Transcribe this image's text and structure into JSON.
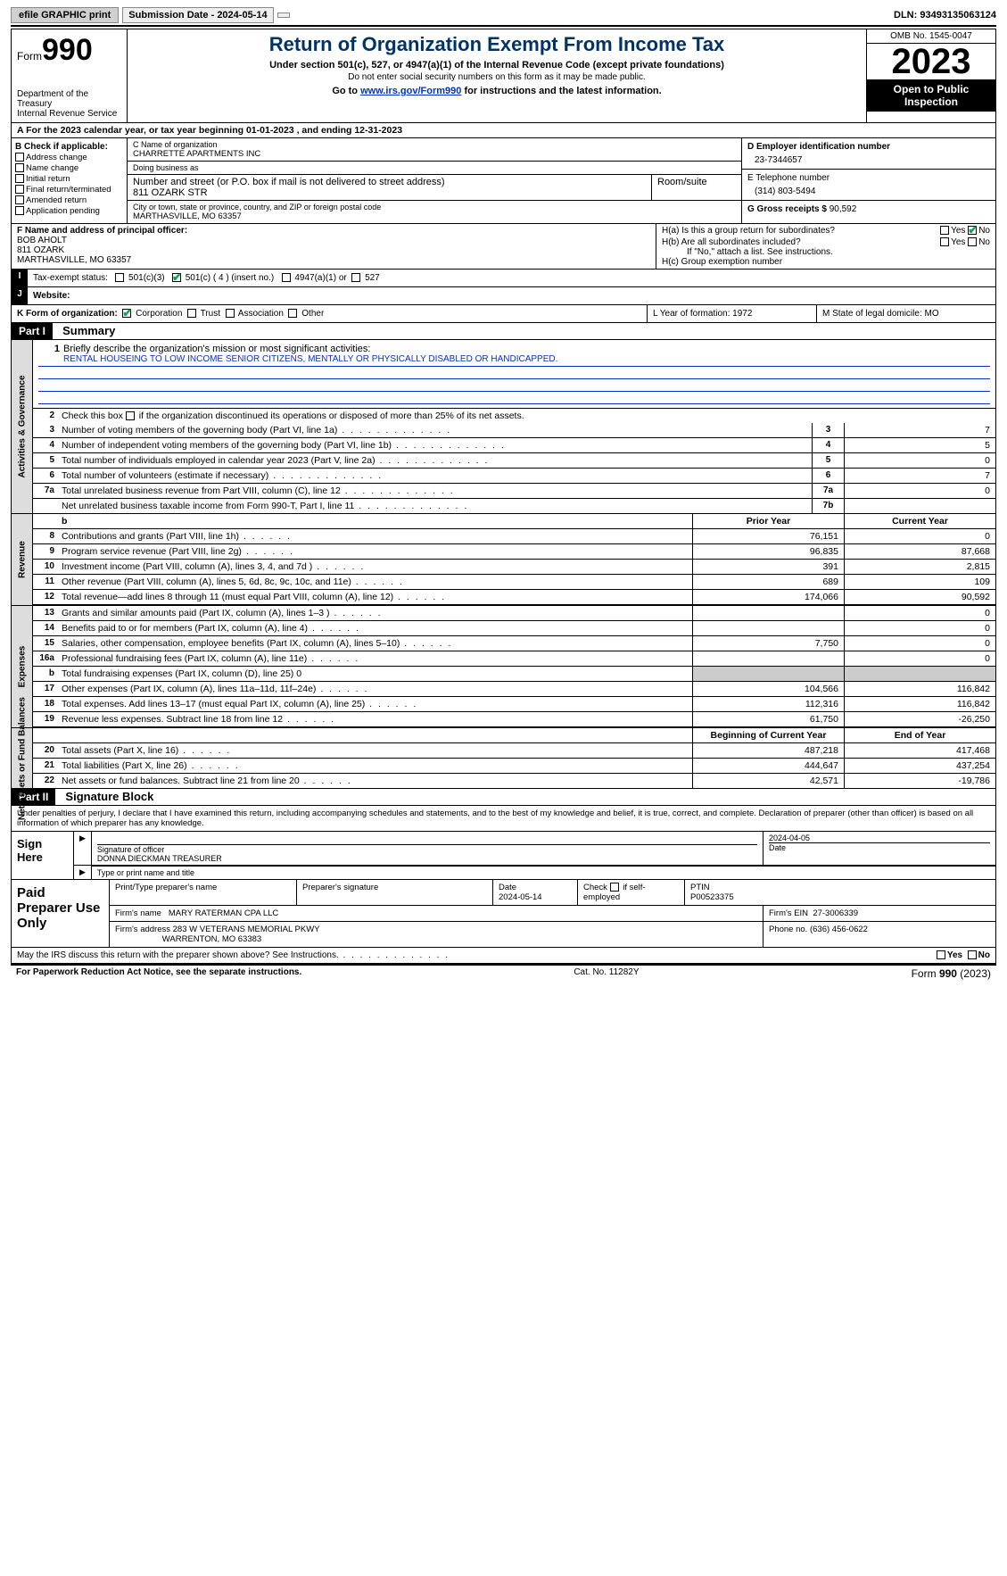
{
  "topbar": {
    "efile": "efile GRAPHIC print",
    "submission": "Submission Date - 2024-05-14",
    "dln": "DLN: 93493135063124"
  },
  "header": {
    "form_label": "Form",
    "form_num": "990",
    "dept": "Department of the Treasury\nInternal Revenue Service",
    "title": "Return of Organization Exempt From Income Tax",
    "sub1": "Under section 501(c), 527, or 4947(a)(1) of the Internal Revenue Code (except private foundations)",
    "sub2": "Do not enter social security numbers on this form as it may be made public.",
    "sub3_pre": "Go to ",
    "sub3_link": "www.irs.gov/Form990",
    "sub3_post": " for instructions and the latest information.",
    "omb": "OMB No. 1545-0047",
    "year": "2023",
    "openpub": "Open to Public Inspection"
  },
  "rowA": "A For the 2023 calendar year, or tax year beginning 01-01-2023   , and ending 12-31-2023",
  "colB": {
    "label": "B Check if applicable:",
    "opts": [
      "Address change",
      "Name change",
      "Initial return",
      "Final return/terminated",
      "Amended return",
      "Application pending"
    ]
  },
  "colC": {
    "name_lbl": "C Name of organization",
    "name": "CHARRETTE APARTMENTS INC",
    "dba_lbl": "Doing business as",
    "dba": "",
    "addr_lbl": "Number and street (or P.O. box if mail is not delivered to street address)",
    "addr": "811 OZARK STR",
    "room_lbl": "Room/suite",
    "city_lbl": "City or town, state or province, country, and ZIP or foreign postal code",
    "city": "MARTHASVILLE, MO  63357"
  },
  "colD": {
    "lbl": "D Employer identification number",
    "val": "23-7344657"
  },
  "colE": {
    "lbl": "E Telephone number",
    "val": "(314) 803-5494"
  },
  "colG": {
    "lbl": "G Gross receipts $",
    "val": "90,592"
  },
  "secF": {
    "lbl": "F  Name and address of principal officer:",
    "name": "BOB AHOLT",
    "addr1": "811 OZARK",
    "addr2": "MARTHASVILLE, MO  63357"
  },
  "secH": {
    "ha": "H(a)  Is this a group return for subordinates?",
    "hb": "H(b)  Are all subordinates included?",
    "hb_note": "If \"No,\" attach a list. See instructions.",
    "hc": "H(c)  Group exemption number",
    "yes": "Yes",
    "no": "No"
  },
  "taxI": {
    "lbl": "Tax-exempt status:",
    "o1": "501(c)(3)",
    "o2": "501(c) ( 4 ) (insert no.)",
    "o3": "4947(a)(1) or",
    "o4": "527"
  },
  "taxJ": {
    "lbl": "Website:",
    "val": ""
  },
  "rowK": {
    "lbl": "K Form of organization:",
    "o1": "Corporation",
    "o2": "Trust",
    "o3": "Association",
    "o4": "Other",
    "L": "L Year of formation: 1972",
    "M": "M State of legal domicile: MO"
  },
  "part1": {
    "hdr": "Part I",
    "title": "Summary"
  },
  "mission": {
    "q": "Briefly describe the organization's mission or most significant activities:",
    "txt": "RENTAL HOUSEING TO LOW INCOME SENIOR CITIZENS, MENTALLY OR PHYSICALLY DISABLED OR HANDICAPPED."
  },
  "gov": {
    "l2": "Check this box      if the organization discontinued its operations or disposed of more than 25% of its net assets.",
    "rows": [
      {
        "n": "3",
        "d": "Number of voting members of the governing body (Part VI, line 1a)",
        "b": "3",
        "v": "7"
      },
      {
        "n": "4",
        "d": "Number of independent voting members of the governing body (Part VI, line 1b)",
        "b": "4",
        "v": "5"
      },
      {
        "n": "5",
        "d": "Total number of individuals employed in calendar year 2023 (Part V, line 2a)",
        "b": "5",
        "v": "0"
      },
      {
        "n": "6",
        "d": "Total number of volunteers (estimate if necessary)",
        "b": "6",
        "v": "7"
      },
      {
        "n": "7a",
        "d": "Total unrelated business revenue from Part VIII, column (C), line 12",
        "b": "7a",
        "v": "0"
      },
      {
        "n": "",
        "d": "Net unrelated business taxable income from Form 990-T, Part I, line 11",
        "b": "7b",
        "v": ""
      }
    ]
  },
  "side1": "Activities & Governance",
  "side2": "Revenue",
  "side3": "Expenses",
  "side4": "Net Assets or Fund Balances",
  "colhdrs": {
    "prior": "Prior Year",
    "curr": "Current Year",
    "beg": "Beginning of Current Year",
    "end": "End of Year"
  },
  "rev": [
    {
      "n": "8",
      "d": "Contributions and grants (Part VIII, line 1h)",
      "p": "76,151",
      "c": "0"
    },
    {
      "n": "9",
      "d": "Program service revenue (Part VIII, line 2g)",
      "p": "96,835",
      "c": "87,668"
    },
    {
      "n": "10",
      "d": "Investment income (Part VIII, column (A), lines 3, 4, and 7d )",
      "p": "391",
      "c": "2,815"
    },
    {
      "n": "11",
      "d": "Other revenue (Part VIII, column (A), lines 5, 6d, 8c, 9c, 10c, and 11e)",
      "p": "689",
      "c": "109"
    },
    {
      "n": "12",
      "d": "Total revenue—add lines 8 through 11 (must equal Part VIII, column (A), line 12)",
      "p": "174,066",
      "c": "90,592"
    }
  ],
  "exp": [
    {
      "n": "13",
      "d": "Grants and similar amounts paid (Part IX, column (A), lines 1–3 )",
      "p": "",
      "c": "0"
    },
    {
      "n": "14",
      "d": "Benefits paid to or for members (Part IX, column (A), line 4)",
      "p": "",
      "c": "0"
    },
    {
      "n": "15",
      "d": "Salaries, other compensation, employee benefits (Part IX, column (A), lines 5–10)",
      "p": "7,750",
      "c": "0"
    },
    {
      "n": "16a",
      "d": "Professional fundraising fees (Part IX, column (A), line 11e)",
      "p": "",
      "c": "0"
    },
    {
      "n": "b",
      "d": "Total fundraising expenses (Part IX, column (D), line 25) 0",
      "p": "GREY",
      "c": "GREY"
    },
    {
      "n": "17",
      "d": "Other expenses (Part IX, column (A), lines 11a–11d, 11f–24e)",
      "p": "104,566",
      "c": "116,842"
    },
    {
      "n": "18",
      "d": "Total expenses. Add lines 13–17 (must equal Part IX, column (A), line 25)",
      "p": "112,316",
      "c": "116,842"
    },
    {
      "n": "19",
      "d": "Revenue less expenses. Subtract line 18 from line 12",
      "p": "61,750",
      "c": "-26,250"
    }
  ],
  "net": [
    {
      "n": "20",
      "d": "Total assets (Part X, line 16)",
      "p": "487,218",
      "c": "417,468"
    },
    {
      "n": "21",
      "d": "Total liabilities (Part X, line 26)",
      "p": "444,647",
      "c": "437,254"
    },
    {
      "n": "22",
      "d": "Net assets or fund balances. Subtract line 21 from line 20",
      "p": "42,571",
      "c": "-19,786"
    }
  ],
  "part2": {
    "hdr": "Part II",
    "title": "Signature Block"
  },
  "perjury": "Under penalties of perjury, I declare that I have examined this return, including accompanying schedules and statements, and to the best of my knowledge and belief, it is true, correct, and complete. Declaration of preparer (other than officer) is based on all information of which preparer has any knowledge.",
  "sign": {
    "here": "Sign Here",
    "sig_lbl": "Signature of officer",
    "name": "DONNA DIECKMAN  TREASURER",
    "name_lbl": "Type or print name and title",
    "date_lbl": "Date",
    "date": "2024-04-05"
  },
  "prep": {
    "title": "Paid Preparer Use Only",
    "h1": "Print/Type preparer's name",
    "h2": "Preparer's signature",
    "h3": "Date",
    "h3v": "2024-05-14",
    "h4": "Check       if self-employed",
    "h5": "PTIN",
    "h5v": "P00523375",
    "firm_lbl": "Firm's name",
    "firm": "MARY RATERMAN CPA LLC",
    "ein_lbl": "Firm's EIN",
    "ein": "27-3006339",
    "addr_lbl": "Firm's address",
    "addr1": "283 W VETERANS MEMORIAL PKWY",
    "addr2": "WARRENTON, MO  63383",
    "phone_lbl": "Phone no.",
    "phone": "(636) 456-0622"
  },
  "discuss": "May the IRS discuss this return with the preparer shown above? See Instructions.",
  "footer": {
    "f1": "For Paperwork Reduction Act Notice, see the separate instructions.",
    "f2": "Cat. No. 11282Y",
    "f3": "Form 990 (2023)"
  },
  "colors": {
    "link": "#0033cc",
    "title": "#003366",
    "check": "#00aa55"
  }
}
